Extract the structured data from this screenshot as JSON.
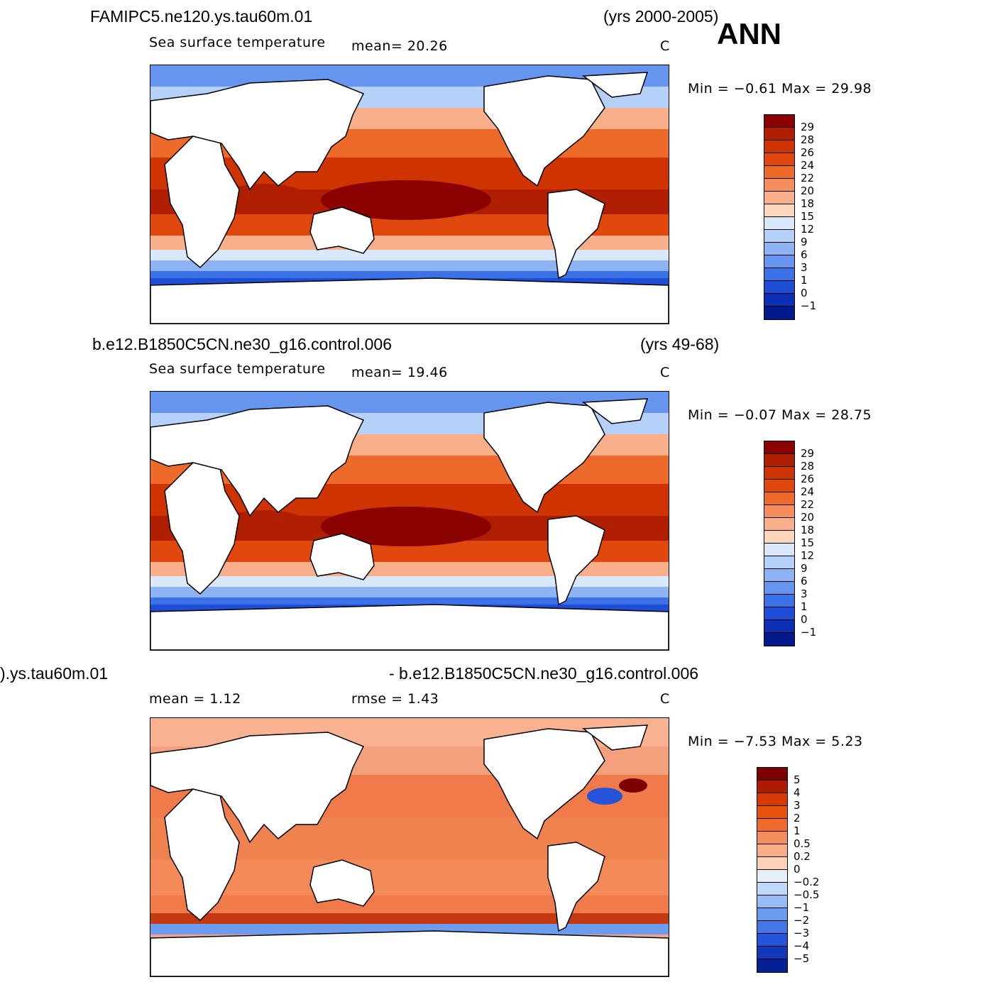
{
  "season": "ANN",
  "panels": [
    {
      "case_left": "FAMIPC5.ne120.ys.tau60m.01",
      "case_right": "(yrs 2000-2005)",
      "var_label": "Sea surface temperature",
      "stat1": "mean=   20.26",
      "stat2": "",
      "units": "C",
      "minmax": "Min =   −0.61  Max =   29.98",
      "colorbar": {
        "labels": [
          "29",
          "28",
          "26",
          "24",
          "22",
          "20",
          "18",
          "15",
          "12",
          "9",
          "6",
          "3",
          "1",
          "0",
          "−1"
        ],
        "colors": [
          "#8b0000",
          "#b01e00",
          "#cf3300",
          "#e0480e",
          "#ee6a2b",
          "#f58d5c",
          "#f9b08a",
          "#fcd7bd",
          "#d9e8fb",
          "#b5d0f9",
          "#8db3f5",
          "#6595ef",
          "#3c72e8",
          "#1e4dd6",
          "#0d2fb6",
          "#031a8c"
        ]
      }
    },
    {
      "case_left": "b.e12.B1850C5CN.ne30_g16.control.006",
      "case_right": "(yrs 49-68)",
      "var_label": "Sea surface temperature",
      "stat1": "mean=   19.46",
      "stat2": "",
      "units": "C",
      "minmax": "Min =   −0.07  Max =   28.75",
      "colorbar": {
        "labels": [
          "29",
          "28",
          "26",
          "24",
          "22",
          "20",
          "18",
          "15",
          "12",
          "9",
          "6",
          "3",
          "1",
          "0",
          "−1"
        ],
        "colors": [
          "#8b0000",
          "#b01e00",
          "#cf3300",
          "#e0480e",
          "#ee6a2b",
          "#f58d5c",
          "#f9b08a",
          "#fcd7bd",
          "#d9e8fb",
          "#b5d0f9",
          "#8db3f5",
          "#6595ef",
          "#3c72e8",
          "#1e4dd6",
          "#0d2fb6",
          "#031a8c"
        ]
      }
    },
    {
      "case_left": ").ys.tau60m.01",
      "case_right": "- b.e12.B1850C5CN.ne30_g16.control.006",
      "var_label": "",
      "stat1": "mean =    1.12",
      "stat2": "rmse =    1.43",
      "units": "C",
      "minmax": "Min =   −7.53  Max =    5.23",
      "colorbar": {
        "labels": [
          "5",
          "4",
          "3",
          "2",
          "1",
          "0.5",
          "0.2",
          "0",
          "−0.2",
          "−0.5",
          "−1",
          "−2",
          "−3",
          "−4",
          "−5"
        ],
        "colors": [
          "#7d0000",
          "#b01a00",
          "#d63a00",
          "#e8520f",
          "#f06a2e",
          "#f58c5a",
          "#f9ae88",
          "#fcd2b8",
          "#e8f0fc",
          "#c2d8fa",
          "#98bcf6",
          "#6c9cf0",
          "#4278e6",
          "#2554d8",
          "#1237bb",
          "#061f93"
        ]
      }
    }
  ]
}
